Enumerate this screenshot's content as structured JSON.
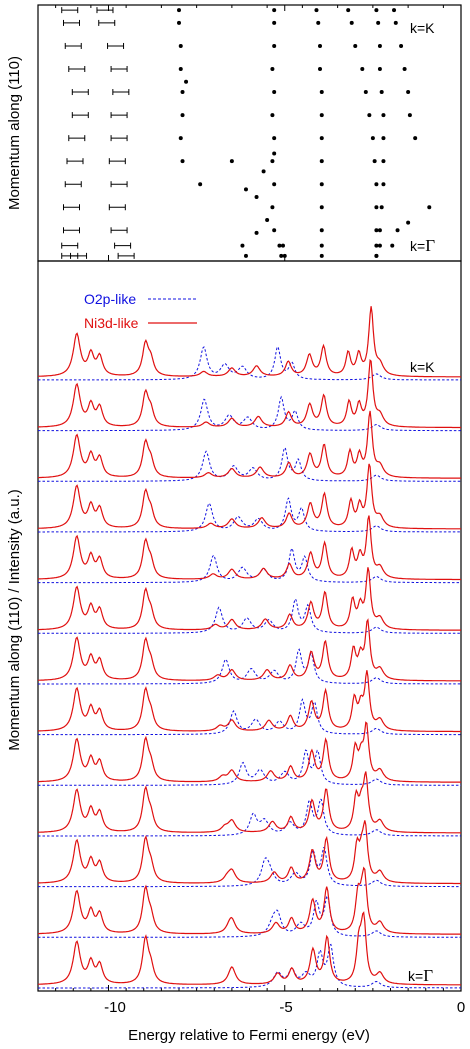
{
  "chart_data": [
    {
      "type": "scatter",
      "panel": "top",
      "ylabel": "Momentum along (110)",
      "annotations": [
        "k=K",
        "k=Γ"
      ],
      "xlim": [
        -12,
        0
      ],
      "ylim": [
        0,
        1
      ],
      "colors": {
        "points": "#000000"
      },
      "series": [
        {
          "points": [
            [
              -11.1,
              0.98
            ],
            [
              -10.1,
              0.98
            ],
            [
              -11.05,
              0.93
            ],
            [
              -10.05,
              0.93
            ],
            [
              -11,
              0.84
            ],
            [
              -9.8,
              0.84
            ],
            [
              -10.9,
              0.75
            ],
            [
              -9.7,
              0.75
            ],
            [
              -10.8,
              0.66
            ],
            [
              -9.65,
              0.66
            ],
            [
              -10.8,
              0.57
            ],
            [
              -9.7,
              0.57
            ],
            [
              -10.9,
              0.48
            ],
            [
              -9.7,
              0.48
            ],
            [
              -10.95,
              0.39
            ],
            [
              -9.75,
              0.39
            ],
            [
              -11,
              0.3
            ],
            [
              -9.7,
              0.3
            ],
            [
              -11.05,
              0.21
            ],
            [
              -9.75,
              0.21
            ],
            [
              -11.05,
              0.12
            ],
            [
              -9.7,
              0.12
            ],
            [
              -11.1,
              0.06
            ],
            [
              -9.6,
              0.06
            ],
            [
              -11.1,
              0.02
            ],
            [
              -9.5,
              0.02
            ],
            [
              -10.85,
              0.02
            ]
          ]
        },
        {
          "points": [
            [
              -8,
              0.98
            ],
            [
              -8,
              0.93
            ],
            [
              -7.95,
              0.84
            ],
            [
              -7.95,
              0.75
            ],
            [
              -7.8,
              0.7
            ],
            [
              -7.9,
              0.66
            ],
            [
              -7.9,
              0.57
            ],
            [
              -7.95,
              0.48
            ],
            [
              -7.9,
              0.39
            ],
            [
              -7.4,
              0.3
            ],
            [
              -6.5,
              0.39
            ],
            [
              -6.1,
              0.28
            ],
            [
              -5.6,
              0.35
            ],
            [
              -5.3,
              0.42
            ],
            [
              -5.8,
              0.25
            ],
            [
              -5.5,
              0.16
            ],
            [
              -5.8,
              0.11
            ],
            [
              -6.2,
              0.06
            ],
            [
              -6.1,
              0.02
            ],
            [
              -5.1,
              0.02
            ],
            [
              -5.05,
              0.06
            ]
          ]
        },
        {
          "points": [
            [
              -5.3,
              0.98
            ],
            [
              -5.3,
              0.93
            ],
            [
              -5.3,
              0.84
            ],
            [
              -5.35,
              0.75
            ],
            [
              -5.3,
              0.66
            ],
            [
              -5.35,
              0.57
            ],
            [
              -5.3,
              0.48
            ],
            [
              -5.35,
              0.39
            ],
            [
              -5.3,
              0.3
            ],
            [
              -5.35,
              0.21
            ],
            [
              -5.3,
              0.12
            ],
            [
              -5.15,
              0.06
            ],
            [
              -5,
              0.02
            ]
          ]
        },
        {
          "points": [
            [
              -4.1,
              0.98
            ],
            [
              -4.05,
              0.93
            ],
            [
              -4,
              0.84
            ],
            [
              -4,
              0.75
            ],
            [
              -3.95,
              0.66
            ],
            [
              -3.95,
              0.57
            ],
            [
              -3.95,
              0.48
            ],
            [
              -3.95,
              0.39
            ],
            [
              -3.95,
              0.3
            ],
            [
              -3.95,
              0.21
            ],
            [
              -3.95,
              0.12
            ],
            [
              -3.95,
              0.06
            ],
            [
              -3.95,
              0.02
            ]
          ]
        },
        {
          "points": [
            [
              -3.2,
              0.98
            ],
            [
              -3.1,
              0.93
            ],
            [
              -3,
              0.84
            ],
            [
              -2.8,
              0.75
            ],
            [
              -2.7,
              0.66
            ],
            [
              -2.6,
              0.57
            ],
            [
              -2.5,
              0.48
            ],
            [
              -2.45,
              0.39
            ],
            [
              -2.4,
              0.3
            ],
            [
              -2.4,
              0.21
            ],
            [
              -2.4,
              0.12
            ],
            [
              -2.4,
              0.06
            ],
            [
              -2.4,
              0.02
            ]
          ]
        },
        {
          "points": [
            [
              -2.4,
              0.98
            ],
            [
              -2.35,
              0.93
            ],
            [
              -2.3,
              0.84
            ],
            [
              -2.3,
              0.75
            ],
            [
              -2.25,
              0.66
            ],
            [
              -2.2,
              0.57
            ],
            [
              -2.2,
              0.48
            ],
            [
              -2.2,
              0.39
            ],
            [
              -2.2,
              0.3
            ],
            [
              -2.25,
              0.21
            ],
            [
              -2.3,
              0.12
            ],
            [
              -2.3,
              0.06
            ],
            [
              -2.4,
              0.02
            ]
          ]
        },
        {
          "points": [
            [
              -1.9,
              0.98
            ],
            [
              -1.85,
              0.93
            ],
            [
              -1.7,
              0.84
            ],
            [
              -1.6,
              0.75
            ],
            [
              -1.5,
              0.66
            ],
            [
              -1.45,
              0.57
            ],
            [
              -1.3,
              0.48
            ],
            [
              -0.9,
              0.21
            ],
            [
              -1.5,
              0.15
            ],
            [
              -1.8,
              0.12
            ],
            [
              -1.95,
              0.06
            ]
          ]
        }
      ]
    },
    {
      "type": "line",
      "panel": "bottom",
      "xlabel": "Energy relative to Fermi energy (eV)",
      "ylabel": "Momentum along (110) / Intensity (a.u.)",
      "xlim": [
        -12,
        0
      ],
      "xticks": [
        -10,
        -5,
        0
      ],
      "annotations": [
        "k=K",
        "k=Γ"
      ],
      "legend": "top-left",
      "colors": {
        "Ni3d-like": "#e01010",
        "O2p-like": "#1010e0"
      },
      "series": [
        {
          "name": "O2p-like",
          "style": "dotted",
          "count": 13
        },
        {
          "name": "Ni3d-like",
          "style": "solid",
          "count": 13
        }
      ]
    }
  ],
  "labels": {
    "top_ylabel": "Momentum along (110)",
    "bottom_ylabel": "Momentum along (110) / Intensity (a.u.)",
    "xlabel": "Energy relative to Fermi energy (eV)",
    "k_K": "k=K",
    "k_prefix": "k=",
    "gamma": "Γ",
    "legend_o2p": "O2p-like",
    "legend_ni3d": "Ni3d-like"
  },
  "tick_labels": [
    "-10",
    "-5",
    "0"
  ]
}
